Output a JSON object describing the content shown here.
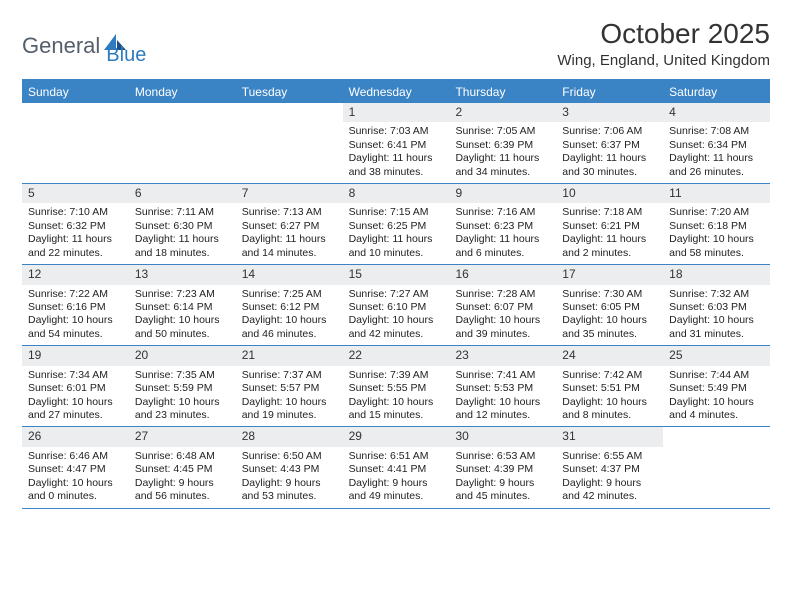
{
  "logo": {
    "word1": "General",
    "word2": "Blue"
  },
  "title": "October 2025",
  "location": "Wing, England, United Kingdom",
  "colors": {
    "brandBlue": "#3a83c4",
    "dayBar": "#ebedef",
    "logoGray": "#555f6b",
    "logoBlue": "#2f7bbf"
  },
  "weekdays": [
    "Sunday",
    "Monday",
    "Tuesday",
    "Wednesday",
    "Thursday",
    "Friday",
    "Saturday"
  ],
  "firstDayOffset": 3,
  "days": [
    {
      "n": 1,
      "sunrise": "7:03 AM",
      "sunset": "6:41 PM",
      "daylight": "11 hours and 38 minutes."
    },
    {
      "n": 2,
      "sunrise": "7:05 AM",
      "sunset": "6:39 PM",
      "daylight": "11 hours and 34 minutes."
    },
    {
      "n": 3,
      "sunrise": "7:06 AM",
      "sunset": "6:37 PM",
      "daylight": "11 hours and 30 minutes."
    },
    {
      "n": 4,
      "sunrise": "7:08 AM",
      "sunset": "6:34 PM",
      "daylight": "11 hours and 26 minutes."
    },
    {
      "n": 5,
      "sunrise": "7:10 AM",
      "sunset": "6:32 PM",
      "daylight": "11 hours and 22 minutes."
    },
    {
      "n": 6,
      "sunrise": "7:11 AM",
      "sunset": "6:30 PM",
      "daylight": "11 hours and 18 minutes."
    },
    {
      "n": 7,
      "sunrise": "7:13 AM",
      "sunset": "6:27 PM",
      "daylight": "11 hours and 14 minutes."
    },
    {
      "n": 8,
      "sunrise": "7:15 AM",
      "sunset": "6:25 PM",
      "daylight": "11 hours and 10 minutes."
    },
    {
      "n": 9,
      "sunrise": "7:16 AM",
      "sunset": "6:23 PM",
      "daylight": "11 hours and 6 minutes."
    },
    {
      "n": 10,
      "sunrise": "7:18 AM",
      "sunset": "6:21 PM",
      "daylight": "11 hours and 2 minutes."
    },
    {
      "n": 11,
      "sunrise": "7:20 AM",
      "sunset": "6:18 PM",
      "daylight": "10 hours and 58 minutes."
    },
    {
      "n": 12,
      "sunrise": "7:22 AM",
      "sunset": "6:16 PM",
      "daylight": "10 hours and 54 minutes."
    },
    {
      "n": 13,
      "sunrise": "7:23 AM",
      "sunset": "6:14 PM",
      "daylight": "10 hours and 50 minutes."
    },
    {
      "n": 14,
      "sunrise": "7:25 AM",
      "sunset": "6:12 PM",
      "daylight": "10 hours and 46 minutes."
    },
    {
      "n": 15,
      "sunrise": "7:27 AM",
      "sunset": "6:10 PM",
      "daylight": "10 hours and 42 minutes."
    },
    {
      "n": 16,
      "sunrise": "7:28 AM",
      "sunset": "6:07 PM",
      "daylight": "10 hours and 39 minutes."
    },
    {
      "n": 17,
      "sunrise": "7:30 AM",
      "sunset": "6:05 PM",
      "daylight": "10 hours and 35 minutes."
    },
    {
      "n": 18,
      "sunrise": "7:32 AM",
      "sunset": "6:03 PM",
      "daylight": "10 hours and 31 minutes."
    },
    {
      "n": 19,
      "sunrise": "7:34 AM",
      "sunset": "6:01 PM",
      "daylight": "10 hours and 27 minutes."
    },
    {
      "n": 20,
      "sunrise": "7:35 AM",
      "sunset": "5:59 PM",
      "daylight": "10 hours and 23 minutes."
    },
    {
      "n": 21,
      "sunrise": "7:37 AM",
      "sunset": "5:57 PM",
      "daylight": "10 hours and 19 minutes."
    },
    {
      "n": 22,
      "sunrise": "7:39 AM",
      "sunset": "5:55 PM",
      "daylight": "10 hours and 15 minutes."
    },
    {
      "n": 23,
      "sunrise": "7:41 AM",
      "sunset": "5:53 PM",
      "daylight": "10 hours and 12 minutes."
    },
    {
      "n": 24,
      "sunrise": "7:42 AM",
      "sunset": "5:51 PM",
      "daylight": "10 hours and 8 minutes."
    },
    {
      "n": 25,
      "sunrise": "7:44 AM",
      "sunset": "5:49 PM",
      "daylight": "10 hours and 4 minutes."
    },
    {
      "n": 26,
      "sunrise": "6:46 AM",
      "sunset": "4:47 PM",
      "daylight": "10 hours and 0 minutes."
    },
    {
      "n": 27,
      "sunrise": "6:48 AM",
      "sunset": "4:45 PM",
      "daylight": "9 hours and 56 minutes."
    },
    {
      "n": 28,
      "sunrise": "6:50 AM",
      "sunset": "4:43 PM",
      "daylight": "9 hours and 53 minutes."
    },
    {
      "n": 29,
      "sunrise": "6:51 AM",
      "sunset": "4:41 PM",
      "daylight": "9 hours and 49 minutes."
    },
    {
      "n": 30,
      "sunrise": "6:53 AM",
      "sunset": "4:39 PM",
      "daylight": "9 hours and 45 minutes."
    },
    {
      "n": 31,
      "sunrise": "6:55 AM",
      "sunset": "4:37 PM",
      "daylight": "9 hours and 42 minutes."
    }
  ],
  "labels": {
    "sunrise": "Sunrise:",
    "sunset": "Sunset:",
    "daylight": "Daylight:"
  }
}
